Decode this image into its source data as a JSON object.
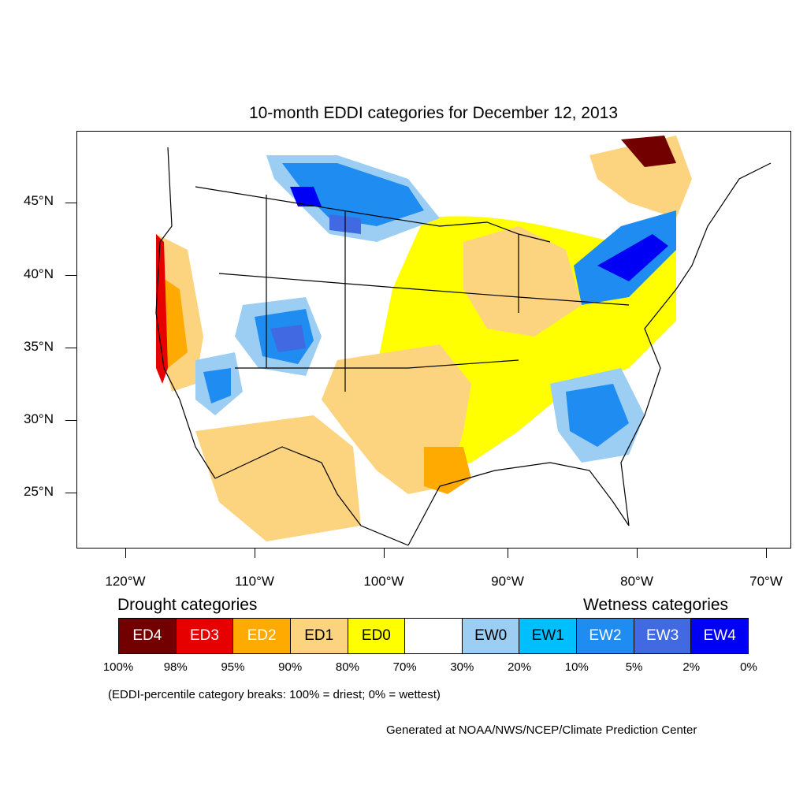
{
  "title": "10-month EDDI categories for December 12, 2013",
  "axes": {
    "lat_labels": [
      "45°N",
      "40°N",
      "35°N",
      "30°N",
      "25°N"
    ],
    "lon_labels": [
      "120°W",
      "110°W",
      "100°W",
      "90°W",
      "80°W",
      "70°W"
    ]
  },
  "legend": {
    "drought_label": "Drought categories",
    "wetness_label": "Wetness categories",
    "categories": [
      {
        "label": "ED4",
        "color": "#730000",
        "text_color": "#ffffff"
      },
      {
        "label": "ED3",
        "color": "#e60000",
        "text_color": "#ffffff"
      },
      {
        "label": "ED2",
        "color": "#ffaa00",
        "text_color": "#ffffff"
      },
      {
        "label": "ED1",
        "color": "#fcd37f",
        "text_color": "#000000"
      },
      {
        "label": "ED0",
        "color": "#ffff00",
        "text_color": "#000000"
      },
      {
        "label": "",
        "color": "#ffffff",
        "text_color": "#000000"
      },
      {
        "label": "EW0",
        "color": "#9ccdf2",
        "text_color": "#000000"
      },
      {
        "label": "EW1",
        "color": "#00bfff",
        "text_color": "#000000"
      },
      {
        "label": "EW2",
        "color": "#1e8cf0",
        "text_color": "#ffffff"
      },
      {
        "label": "EW3",
        "color": "#4169e1",
        "text_color": "#ffffff"
      },
      {
        "label": "EW4",
        "color": "#0000f5",
        "text_color": "#ffffff"
      }
    ],
    "breaks": [
      "100%",
      "98%",
      "95%",
      "90%",
      "80%",
      "70%",
      "30%",
      "20%",
      "10%",
      "5%",
      "2%",
      "0%"
    ]
  },
  "note": "(EDDI-percentile category breaks: 100% = driest; 0% = wettest)",
  "credit": "Generated at NOAA/NWS/NCEP/Climate Prediction Center"
}
